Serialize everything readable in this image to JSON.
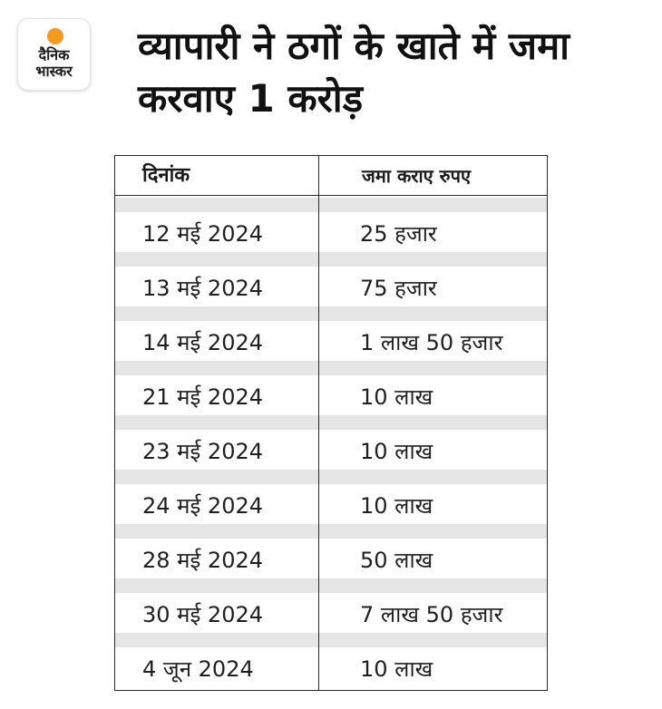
{
  "logo": {
    "line1": "दैनिक",
    "line2": "भास्कर",
    "accent": "#f59a1b"
  },
  "title": "व्यापारी ने ठगों के खाते में जमा करवाए 1 करोड़",
  "table": {
    "headers": [
      "दिनांक",
      "जमा कराए रुपए"
    ],
    "rows": [
      [
        "12 मई 2024",
        "25 हजार"
      ],
      [
        "13 मई 2024",
        "75 हजार"
      ],
      [
        "14 मई 2024",
        "1 लाख 50 हजार"
      ],
      [
        "21 मई 2024",
        "10 लाख"
      ],
      [
        "23 मई 2024",
        "10 लाख"
      ],
      [
        "24 मई 2024",
        "10 लाख"
      ],
      [
        "28 मई 2024",
        "50 लाख"
      ],
      [
        "30 मई 2024",
        "7 लाख 50 हजार"
      ],
      [
        "4 जून 2024",
        "10 लाख"
      ]
    ]
  }
}
